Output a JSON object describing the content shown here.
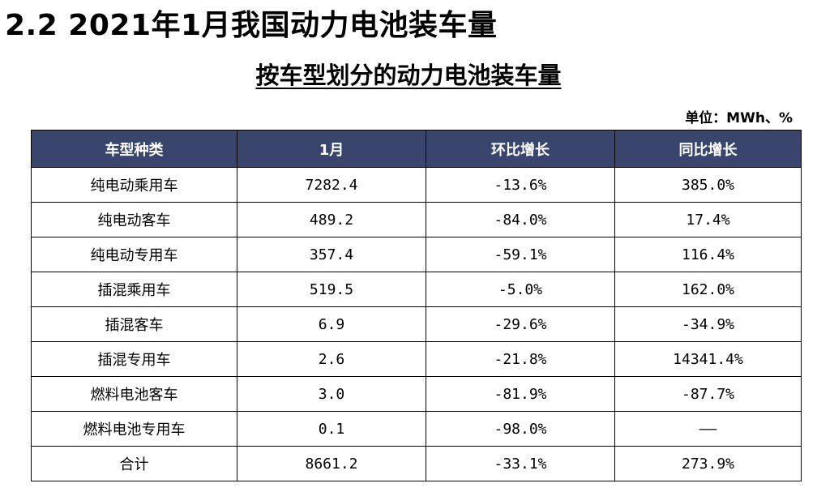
{
  "heading": "2.2 2021年1月我国动力电池装车量",
  "table_title": "按车型划分的动力电池装车量",
  "unit": "单位：MWh、%",
  "columns": [
    "车型种类",
    "1月",
    "环比增长",
    "同比增长"
  ],
  "rows": [
    {
      "type": "纯电动乘用车",
      "jan": "7282.4",
      "mom": "-13.6%",
      "yoy": "385.0%"
    },
    {
      "type": "纯电动客车",
      "jan": "489.2",
      "mom": "-84.0%",
      "yoy": "17.4%"
    },
    {
      "type": "纯电动专用车",
      "jan": "357.4",
      "mom": "-59.1%",
      "yoy": "116.4%"
    },
    {
      "type": "插混乘用车",
      "jan": "519.5",
      "mom": "-5.0%",
      "yoy": "162.0%"
    },
    {
      "type": "插混客车",
      "jan": "6.9",
      "mom": "-29.6%",
      "yoy": "-34.9%"
    },
    {
      "type": "插混专用车",
      "jan": "2.6",
      "mom": "-21.8%",
      "yoy": "14341.4%"
    },
    {
      "type": "燃料电池客车",
      "jan": "3.0",
      "mom": "-81.9%",
      "yoy": "-87.7%"
    },
    {
      "type": "燃料电池专用车",
      "jan": "0.1",
      "mom": "-98.0%",
      "yoy": "——"
    },
    {
      "type": "合计",
      "jan": "8661.2",
      "mom": "-33.1%",
      "yoy": "273.9%"
    }
  ],
  "colors": {
    "header_bg": "#3a456e",
    "header_text": "#ffffff"
  }
}
